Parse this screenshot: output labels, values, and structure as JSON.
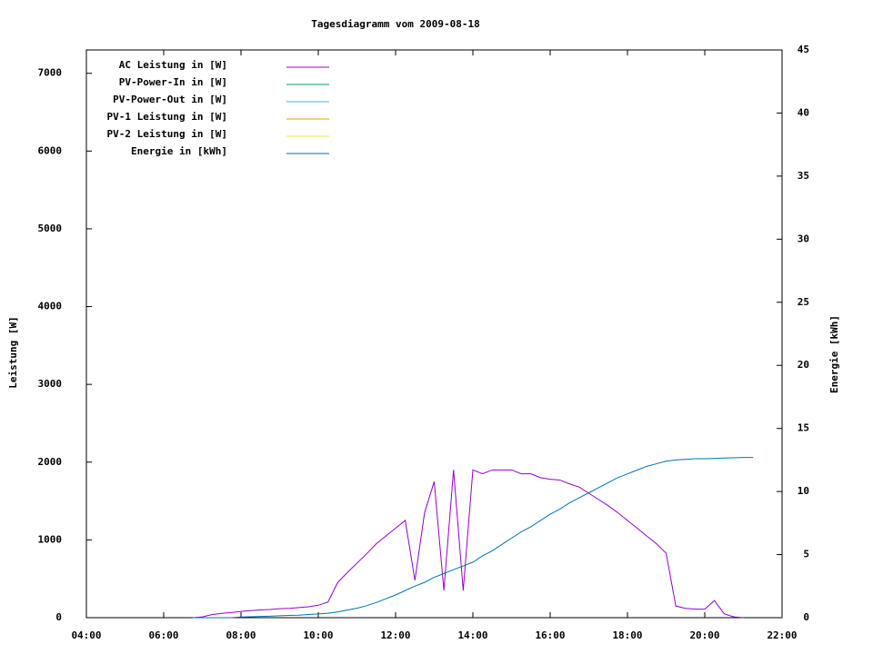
{
  "chart_data": {
    "type": "line",
    "title": "Tagesdiagramm vom 2009-08-18",
    "y_label": "Leistung [W]",
    "y2_label": "Energie [kWh]",
    "x": [
      6.75,
      7,
      7.25,
      7.5,
      7.75,
      8,
      8.25,
      8.5,
      8.75,
      9,
      9.25,
      9.5,
      9.75,
      10,
      10.25,
      10.5,
      10.75,
      11,
      11.25,
      11.5,
      11.75,
      12,
      12.25,
      12.5,
      12.75,
      13,
      13.25,
      13.5,
      13.75,
      14,
      14.25,
      14.5,
      14.75,
      15,
      15.25,
      15.5,
      15.75,
      16,
      16.25,
      16.5,
      16.75,
      17,
      17.25,
      17.5,
      17.75,
      18,
      18.25,
      18.5,
      18.75,
      19,
      19.25,
      19.5,
      19.75,
      20,
      20.25,
      20.5,
      20.75,
      21,
      21.25
    ],
    "xlim": [
      4,
      22
    ],
    "xticks": [
      {
        "value": 4,
        "label": "04:00"
      },
      {
        "value": 6,
        "label": "06:00"
      },
      {
        "value": 8,
        "label": "08:00"
      },
      {
        "value": 10,
        "label": "10:00"
      },
      {
        "value": 12,
        "label": "12:00"
      },
      {
        "value": 14,
        "label": "14:00"
      },
      {
        "value": 16,
        "label": "16:00"
      },
      {
        "value": 18,
        "label": "18:00"
      },
      {
        "value": 20,
        "label": "20:00"
      },
      {
        "value": 22,
        "label": "22:00"
      }
    ],
    "ylim": [
      0,
      7300
    ],
    "yticks": [
      0,
      1000,
      2000,
      3000,
      4000,
      5000,
      6000,
      7000
    ],
    "y2lim": [
      0,
      45
    ],
    "y2ticks": [
      0,
      5,
      10,
      15,
      20,
      25,
      30,
      35,
      40,
      45
    ],
    "series": [
      {
        "name": "AC Leistung in [W]",
        "color": "#9400d3",
        "values": [
          0,
          10,
          40,
          55,
          65,
          80,
          90,
          100,
          105,
          115,
          120,
          130,
          140,
          160,
          200,
          450,
          580,
          700,
          820,
          950,
          1050,
          1150,
          1250,
          480,
          1350,
          1750,
          350,
          1900,
          350,
          1900,
          1850,
          1900,
          1900,
          1900,
          1850,
          1850,
          1800,
          1780,
          1770,
          1720,
          1680,
          1600,
          1520,
          1440,
          1350,
          1250,
          1150,
          1050,
          950,
          830,
          150,
          120,
          110,
          110,
          220,
          50,
          10,
          0,
          null
        ]
      },
      {
        "name": "PV-Power-In in [W]",
        "color": "#009e73",
        "values": [
          null,
          null,
          null,
          null,
          null,
          null,
          null,
          null,
          null,
          null,
          null,
          null,
          null,
          null,
          null,
          null,
          null,
          null,
          null,
          null,
          null,
          null,
          null,
          null,
          null,
          null,
          null,
          null,
          null,
          null,
          null,
          null,
          null,
          null,
          null,
          null,
          null,
          null,
          null,
          null,
          null,
          null,
          null,
          null,
          null,
          null,
          null,
          null,
          null,
          null,
          null,
          null,
          null,
          null,
          null,
          null,
          null,
          null,
          null
        ]
      },
      {
        "name": "PV-Power-Out in [W]",
        "color": "#56b4e9",
        "values": [
          null,
          null,
          null,
          null,
          null,
          null,
          null,
          null,
          null,
          null,
          null,
          null,
          null,
          null,
          null,
          null,
          null,
          null,
          null,
          null,
          null,
          null,
          null,
          null,
          null,
          null,
          null,
          null,
          null,
          null,
          null,
          null,
          null,
          null,
          null,
          null,
          null,
          null,
          null,
          null,
          null,
          null,
          null,
          null,
          null,
          null,
          null,
          null,
          null,
          null,
          null,
          null,
          null,
          null,
          null,
          null,
          null,
          null,
          null
        ]
      },
      {
        "name": "PV-1 Leistung in [W]",
        "color": "#e69f00",
        "values": [
          null,
          null,
          null,
          null,
          null,
          null,
          null,
          null,
          null,
          null,
          null,
          null,
          null,
          null,
          null,
          null,
          null,
          null,
          null,
          null,
          null,
          null,
          null,
          null,
          null,
          null,
          null,
          null,
          null,
          null,
          null,
          null,
          null,
          null,
          null,
          null,
          null,
          null,
          null,
          null,
          null,
          null,
          null,
          null,
          null,
          null,
          null,
          null,
          null,
          null,
          null,
          null,
          null,
          null,
          null,
          null,
          null,
          null,
          null
        ]
      },
      {
        "name": "PV-2 Leistung in [W]",
        "color": "#f0e442",
        "values": [
          null,
          null,
          null,
          null,
          null,
          null,
          null,
          null,
          null,
          null,
          null,
          null,
          null,
          null,
          null,
          null,
          null,
          null,
          null,
          null,
          null,
          null,
          null,
          null,
          null,
          null,
          null,
          null,
          null,
          null,
          null,
          null,
          null,
          null,
          null,
          null,
          null,
          null,
          null,
          null,
          null,
          null,
          null,
          null,
          null,
          null,
          null,
          null,
          null,
          null,
          null,
          null,
          null,
          null,
          null,
          null,
          null,
          null,
          null
        ]
      },
      {
        "name": "Energie in [kWh]",
        "color": "#0072b2",
        "axis": "y2",
        "values": [
          0,
          0,
          0,
          0,
          0,
          0.05,
          0.07,
          0.1,
          0.12,
          0.15,
          0.18,
          0.2,
          0.25,
          0.3,
          0.35,
          0.45,
          0.6,
          0.75,
          0.95,
          1.2,
          1.5,
          1.8,
          2.15,
          2.5,
          2.8,
          3.2,
          3.5,
          3.8,
          4.1,
          4.4,
          4.9,
          5.3,
          5.8,
          6.3,
          6.8,
          7.2,
          7.7,
          8.2,
          8.6,
          9.1,
          9.5,
          9.9,
          10.3,
          10.7,
          11.1,
          11.4,
          11.7,
          12.0,
          12.2,
          12.4,
          12.5,
          12.55,
          12.6,
          12.6,
          12.62,
          12.65,
          12.67,
          12.7,
          12.7
        ]
      }
    ]
  }
}
